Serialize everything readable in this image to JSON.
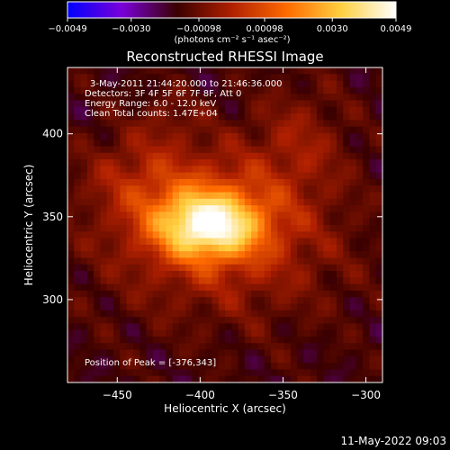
{
  "chart_data": {
    "type": "heatmap",
    "title": "Reconstructed RHESSI Image",
    "xlabel": "Heliocentric X (arcsec)",
    "ylabel": "Heliocentric Y (arcsec)",
    "xlim": [
      -480,
      -290
    ],
    "ylim": [
      250,
      440
    ],
    "x_ticks": [
      -450,
      -400,
      -350,
      -300
    ],
    "x_tick_labels": [
      "−450",
      "−400",
      "−350",
      "−300"
    ],
    "y_ticks": [
      300,
      350,
      400
    ],
    "y_tick_labels": [
      "300",
      "350",
      "400"
    ],
    "colorbar": {
      "min": -0.0049,
      "max": 0.0049,
      "ticks": [
        -0.0049,
        -0.003,
        -0.00098,
        0.00098,
        0.003,
        0.0049
      ],
      "tick_labels": [
        "−0.0049",
        "−0.0030",
        "−0.00098",
        "0.00098",
        "0.0030",
        "0.0049"
      ],
      "units_text": "(photons cm⁻² s⁻¹ asec⁻²)",
      "colors": [
        "#0000ff",
        "#7a00d8",
        "#3a0000",
        "#b02000",
        "#ff6a00",
        "#ffd040",
        "#ffffff"
      ]
    },
    "annotations": [
      "3-May-2011 21:44:20.000 to 21:46:36.000",
      "Detectors: 3F 4F 5F 6F 7F 8F, Att 0",
      "Energy Range: 6.0 - 12.0 keV",
      "Clean     Total counts: 1.47E+04"
    ],
    "peak_label": "Position of Peak = [-376,343]",
    "peak": {
      "x": -376,
      "y": 343
    },
    "sources": [
      {
        "x": -395,
        "y": 345,
        "sx": 22,
        "sy": 14,
        "amp": 0.0049
      },
      {
        "x": -385,
        "y": 330,
        "sx": 50,
        "sy": 30,
        "amp": 0.0015
      },
      {
        "x": -400,
        "y": 365,
        "sx": 40,
        "sy": 25,
        "amp": 0.0012
      },
      {
        "x": -340,
        "y": 395,
        "sx": 20,
        "sy": 25,
        "amp": 0.001
      },
      {
        "x": -440,
        "y": 375,
        "sx": 22,
        "sy": 18,
        "amp": 0.0008
      },
      {
        "x": -420,
        "y": 410,
        "sx": 12,
        "sy": 12,
        "amp": 0.0006
      }
    ]
  },
  "footer": {
    "timestamp": "11-May-2022 09:03"
  }
}
